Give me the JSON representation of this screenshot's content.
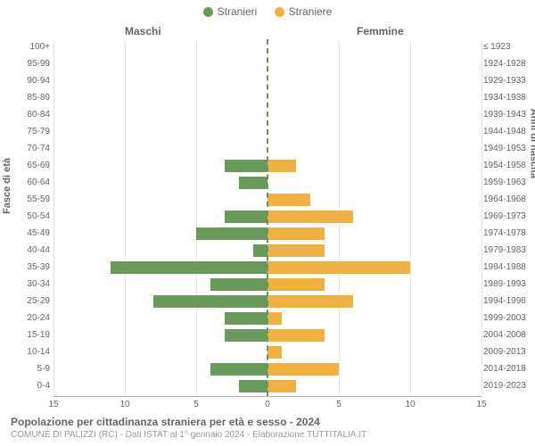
{
  "legend": {
    "male": {
      "label": "Stranieri",
      "color": "#6a9a5b"
    },
    "female": {
      "label": "Straniere",
      "color": "#f0b042"
    }
  },
  "headers": {
    "left": "Maschi",
    "right": "Femmine"
  },
  "y_titles": {
    "left": "Fasce di età",
    "right": "Anni di nascita"
  },
  "chart": {
    "type": "population-pyramid",
    "x_max": 15,
    "x_ticks_left": [
      15,
      10,
      5,
      0
    ],
    "x_ticks_right": [
      0,
      5,
      10,
      15
    ],
    "bar_color_left": "#6a9a5b",
    "bar_color_right": "#f0b042",
    "background_color": "#ffffff",
    "grid_color": "#e8e8e8",
    "axis_color": "#888844",
    "label_color": "#666666",
    "label_fontsize": 10,
    "rows": [
      {
        "age": "100+",
        "year": "≤ 1923",
        "m": 0,
        "f": 0
      },
      {
        "age": "95-99",
        "year": "1924-1928",
        "m": 0,
        "f": 0
      },
      {
        "age": "90-94",
        "year": "1929-1933",
        "m": 0,
        "f": 0
      },
      {
        "age": "85-89",
        "year": "1934-1938",
        "m": 0,
        "f": 0
      },
      {
        "age": "80-84",
        "year": "1939-1943",
        "m": 0,
        "f": 0
      },
      {
        "age": "75-79",
        "year": "1944-1948",
        "m": 0,
        "f": 0
      },
      {
        "age": "70-74",
        "year": "1949-1953",
        "m": 0,
        "f": 0
      },
      {
        "age": "65-69",
        "year": "1954-1958",
        "m": 3,
        "f": 2
      },
      {
        "age": "60-64",
        "year": "1959-1963",
        "m": 2,
        "f": 0
      },
      {
        "age": "55-59",
        "year": "1964-1968",
        "m": 0,
        "f": 3
      },
      {
        "age": "50-54",
        "year": "1969-1973",
        "m": 3,
        "f": 6
      },
      {
        "age": "45-49",
        "year": "1974-1978",
        "m": 5,
        "f": 4
      },
      {
        "age": "40-44",
        "year": "1979-1983",
        "m": 1,
        "f": 4
      },
      {
        "age": "35-39",
        "year": "1984-1988",
        "m": 11,
        "f": 10
      },
      {
        "age": "30-34",
        "year": "1989-1993",
        "m": 4,
        "f": 4
      },
      {
        "age": "25-29",
        "year": "1994-1998",
        "m": 8,
        "f": 6
      },
      {
        "age": "20-24",
        "year": "1999-2003",
        "m": 3,
        "f": 1
      },
      {
        "age": "15-19",
        "year": "2004-2008",
        "m": 3,
        "f": 4
      },
      {
        "age": "10-14",
        "year": "2009-2013",
        "m": 0,
        "f": 1
      },
      {
        "age": "5-9",
        "year": "2014-2018",
        "m": 4,
        "f": 5
      },
      {
        "age": "0-4",
        "year": "2019-2023",
        "m": 2,
        "f": 2
      }
    ]
  },
  "title": "Popolazione per cittadinanza straniera per età e sesso - 2024",
  "subtitle": "COMUNE DI PALIZZI (RC) - Dati ISTAT al 1° gennaio 2024 - Elaborazione TUTTITALIA.IT"
}
